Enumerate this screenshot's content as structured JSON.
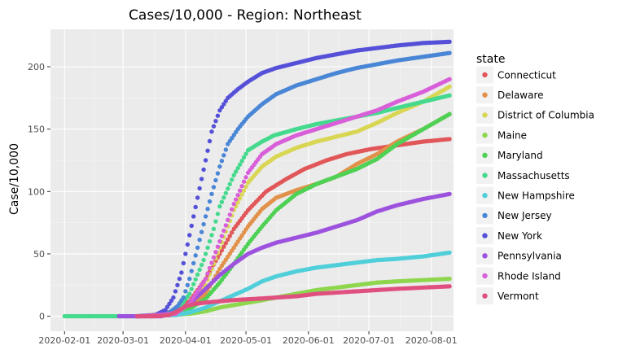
{
  "chart_data": {
    "type": "scatter",
    "title": "Cases/10,000 - Region: Northeast",
    "xlabel": "",
    "ylabel": "Case/10,000",
    "x_ticks": [
      "2020-02-01",
      "2020-03-01",
      "2020-04-01",
      "2020-05-01",
      "2020-06-01",
      "2020-07-01",
      "2020-08-01"
    ],
    "y_ticks": [
      0,
      50,
      100,
      150,
      200
    ],
    "ylim": [
      -12,
      230
    ],
    "x_range_days": [
      -7,
      193
    ],
    "x_unit": "days since 2020-02-01",
    "grid": true,
    "legend_title": "state",
    "legend_position": "right",
    "series": [
      {
        "name": "Connecticut",
        "color": "#e15759",
        "start_day": 36,
        "end_day": 191,
        "points": [
          [
            36,
            0
          ],
          [
            48,
            1
          ],
          [
            55,
            5
          ],
          [
            62,
            12
          ],
          [
            70,
            30
          ],
          [
            77,
            50
          ],
          [
            84,
            70
          ],
          [
            91,
            85
          ],
          [
            100,
            100
          ],
          [
            110,
            110
          ],
          [
            119,
            118
          ],
          [
            130,
            125
          ],
          [
            140,
            130
          ],
          [
            152,
            134
          ],
          [
            165,
            137
          ],
          [
            178,
            140
          ],
          [
            191,
            142
          ]
        ]
      },
      {
        "name": "Delaware",
        "color": "#e2914a",
        "start_day": 40,
        "end_day": 191,
        "points": [
          [
            40,
            0
          ],
          [
            55,
            2
          ],
          [
            62,
            7
          ],
          [
            70,
            18
          ],
          [
            77,
            38
          ],
          [
            84,
            55
          ],
          [
            91,
            72
          ],
          [
            98,
            86
          ],
          [
            105,
            95
          ],
          [
            115,
            101
          ],
          [
            125,
            106
          ],
          [
            135,
            112
          ],
          [
            145,
            122
          ],
          [
            155,
            130
          ],
          [
            165,
            140
          ],
          [
            178,
            150
          ],
          [
            191,
            162
          ]
        ]
      },
      {
        "name": "District of Columbia",
        "color": "#d8d652",
        "start_day": 37,
        "end_day": 191,
        "points": [
          [
            37,
            0
          ],
          [
            55,
            3
          ],
          [
            62,
            10
          ],
          [
            70,
            25
          ],
          [
            77,
            55
          ],
          [
            84,
            85
          ],
          [
            91,
            107
          ],
          [
            98,
            120
          ],
          [
            105,
            128
          ],
          [
            115,
            135
          ],
          [
            125,
            140
          ],
          [
            135,
            144
          ],
          [
            145,
            148
          ],
          [
            155,
            155
          ],
          [
            165,
            163
          ],
          [
            178,
            172
          ],
          [
            191,
            184
          ]
        ]
      },
      {
        "name": "Maine",
        "color": "#8ed64e",
        "start_day": 43,
        "end_day": 191,
        "points": [
          [
            43,
            0
          ],
          [
            62,
            2
          ],
          [
            70,
            4
          ],
          [
            77,
            7
          ],
          [
            84,
            9
          ],
          [
            95,
            12
          ],
          [
            105,
            15
          ],
          [
            115,
            18
          ],
          [
            125,
            21
          ],
          [
            135,
            23
          ],
          [
            145,
            25
          ],
          [
            155,
            27
          ],
          [
            165,
            28
          ],
          [
            178,
            29
          ],
          [
            191,
            30
          ]
        ]
      },
      {
        "name": "Maryland",
        "color": "#4fd155",
        "start_day": 40,
        "end_day": 191,
        "points": [
          [
            40,
            0
          ],
          [
            55,
            2
          ],
          [
            62,
            6
          ],
          [
            70,
            14
          ],
          [
            77,
            27
          ],
          [
            84,
            42
          ],
          [
            91,
            58
          ],
          [
            98,
            72
          ],
          [
            105,
            85
          ],
          [
            115,
            98
          ],
          [
            125,
            106
          ],
          [
            135,
            112
          ],
          [
            145,
            118
          ],
          [
            155,
            126
          ],
          [
            165,
            138
          ],
          [
            178,
            150
          ],
          [
            191,
            162
          ]
        ]
      },
      {
        "name": "Massachusetts",
        "color": "#45d98e",
        "start_day": 0,
        "end_day": 191,
        "points": [
          [
            0,
            0
          ],
          [
            20,
            0
          ],
          [
            36,
            0
          ],
          [
            45,
            1
          ],
          [
            52,
            2
          ],
          [
            56,
            5
          ],
          [
            62,
            18
          ],
          [
            69,
            45
          ],
          [
            74,
            70
          ],
          [
            77,
            88
          ],
          [
            84,
            113
          ],
          [
            91,
            133
          ],
          [
            98,
            140
          ],
          [
            104,
            145
          ],
          [
            115,
            150
          ],
          [
            125,
            154
          ],
          [
            135,
            157
          ],
          [
            145,
            160
          ],
          [
            155,
            163
          ],
          [
            165,
            167
          ],
          [
            178,
            172
          ],
          [
            191,
            177
          ]
        ]
      },
      {
        "name": "New Hampshire",
        "color": "#4fcfd9",
        "start_day": 36,
        "end_day": 191,
        "points": [
          [
            36,
            0
          ],
          [
            55,
            1
          ],
          [
            62,
            3
          ],
          [
            70,
            7
          ],
          [
            77,
            12
          ],
          [
            84,
            17
          ],
          [
            91,
            22
          ],
          [
            98,
            28
          ],
          [
            105,
            32
          ],
          [
            115,
            36
          ],
          [
            125,
            39
          ],
          [
            135,
            41
          ],
          [
            145,
            43
          ],
          [
            155,
            45
          ],
          [
            165,
            46
          ],
          [
            178,
            48
          ],
          [
            191,
            51
          ]
        ]
      },
      {
        "name": "New Jersey",
        "color": "#4a86d6",
        "start_day": 36,
        "end_day": 191,
        "points": [
          [
            36,
            0
          ],
          [
            48,
            1
          ],
          [
            52,
            3
          ],
          [
            56,
            8
          ],
          [
            59,
            15
          ],
          [
            62,
            30
          ],
          [
            66,
            55
          ],
          [
            70,
            80
          ],
          [
            73,
            98
          ],
          [
            77,
            120
          ],
          [
            81,
            138
          ],
          [
            86,
            150
          ],
          [
            91,
            160
          ],
          [
            98,
            170
          ],
          [
            105,
            178
          ],
          [
            115,
            185
          ],
          [
            125,
            190
          ],
          [
            135,
            195
          ],
          [
            145,
            199
          ],
          [
            155,
            202
          ],
          [
            165,
            205
          ],
          [
            178,
            208
          ],
          [
            191,
            211
          ]
        ]
      },
      {
        "name": "New York",
        "color": "#5550d8",
        "start_day": 36,
        "end_day": 191,
        "points": [
          [
            36,
            0
          ],
          [
            45,
            1
          ],
          [
            50,
            5
          ],
          [
            54,
            15
          ],
          [
            58,
            35
          ],
          [
            62,
            65
          ],
          [
            66,
            95
          ],
          [
            70,
            125
          ],
          [
            73,
            148
          ],
          [
            77,
            165
          ],
          [
            81,
            175
          ],
          [
            86,
            182
          ],
          [
            91,
            188
          ],
          [
            98,
            195
          ],
          [
            105,
            199
          ],
          [
            115,
            203
          ],
          [
            125,
            207
          ],
          [
            135,
            210
          ],
          [
            145,
            213
          ],
          [
            155,
            215
          ],
          [
            165,
            217
          ],
          [
            178,
            219
          ],
          [
            191,
            220
          ]
        ]
      },
      {
        "name": "Pennsylvania",
        "color": "#9d52de",
        "start_day": 27,
        "end_day": 191,
        "points": [
          [
            27,
            0
          ],
          [
            48,
            0
          ],
          [
            55,
            3
          ],
          [
            62,
            10
          ],
          [
            70,
            22
          ],
          [
            77,
            33
          ],
          [
            84,
            42
          ],
          [
            91,
            50
          ],
          [
            98,
            55
          ],
          [
            105,
            59
          ],
          [
            115,
            63
          ],
          [
            125,
            67
          ],
          [
            135,
            72
          ],
          [
            145,
            77
          ],
          [
            155,
            84
          ],
          [
            165,
            89
          ],
          [
            178,
            94
          ],
          [
            191,
            98
          ]
        ]
      },
      {
        "name": "Rhode Island",
        "color": "#d95fd9",
        "start_day": 38,
        "end_day": 191,
        "points": [
          [
            38,
            0
          ],
          [
            55,
            2
          ],
          [
            62,
            10
          ],
          [
            70,
            30
          ],
          [
            77,
            60
          ],
          [
            84,
            90
          ],
          [
            91,
            115
          ],
          [
            98,
            130
          ],
          [
            105,
            138
          ],
          [
            115,
            145
          ],
          [
            125,
            150
          ],
          [
            135,
            155
          ],
          [
            145,
            160
          ],
          [
            155,
            165
          ],
          [
            165,
            172
          ],
          [
            178,
            180
          ],
          [
            191,
            190
          ]
        ]
      },
      {
        "name": "Vermont",
        "color": "#e0507f",
        "start_day": 36,
        "end_day": 191,
        "points": [
          [
            36,
            0
          ],
          [
            45,
            0
          ],
          [
            52,
            1
          ],
          [
            56,
            4
          ],
          [
            60,
            8
          ],
          [
            65,
            10
          ],
          [
            70,
            11
          ],
          [
            77,
            12
          ],
          [
            84,
            13
          ],
          [
            95,
            14
          ],
          [
            105,
            15
          ],
          [
            115,
            16
          ],
          [
            125,
            18
          ],
          [
            135,
            19
          ],
          [
            145,
            20
          ],
          [
            155,
            21
          ],
          [
            165,
            22
          ],
          [
            178,
            23
          ],
          [
            191,
            24
          ]
        ]
      }
    ]
  }
}
